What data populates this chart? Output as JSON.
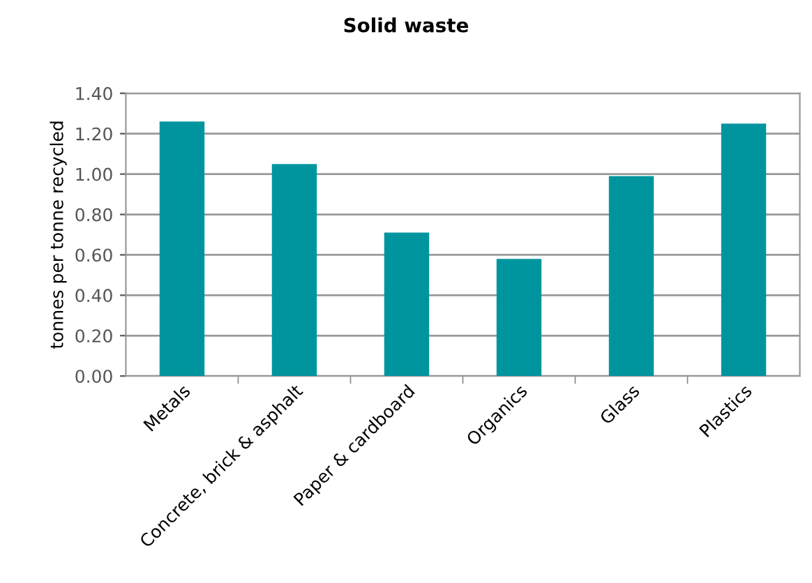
{
  "chart_data": {
    "type": "bar",
    "title": "Solid waste",
    "ylabel": "tonnes per tonne recycled",
    "categories": [
      "Metals",
      "Concrete, brick & asphalt",
      "Paper & cardboard",
      "Organics",
      "Glass",
      "Plastics"
    ],
    "values": [
      1.26,
      1.05,
      0.71,
      0.58,
      0.99,
      1.25
    ],
    "color": "#00959e",
    "ylim": [
      0,
      1.4
    ],
    "yticks": [
      {
        "value": 0,
        "label": "0.00"
      },
      {
        "value": 0.2,
        "label": "0.20"
      },
      {
        "value": 0.4,
        "label": "0.40"
      },
      {
        "value": 0.6,
        "label": "0.60"
      },
      {
        "value": 0.8,
        "label": "0.80"
      },
      {
        "value": 1.0,
        "label": "1.00"
      },
      {
        "value": 1.2,
        "label": "1.20"
      },
      {
        "value": 1.4,
        "label": "1.40"
      }
    ],
    "grid": "y",
    "legend": false
  }
}
